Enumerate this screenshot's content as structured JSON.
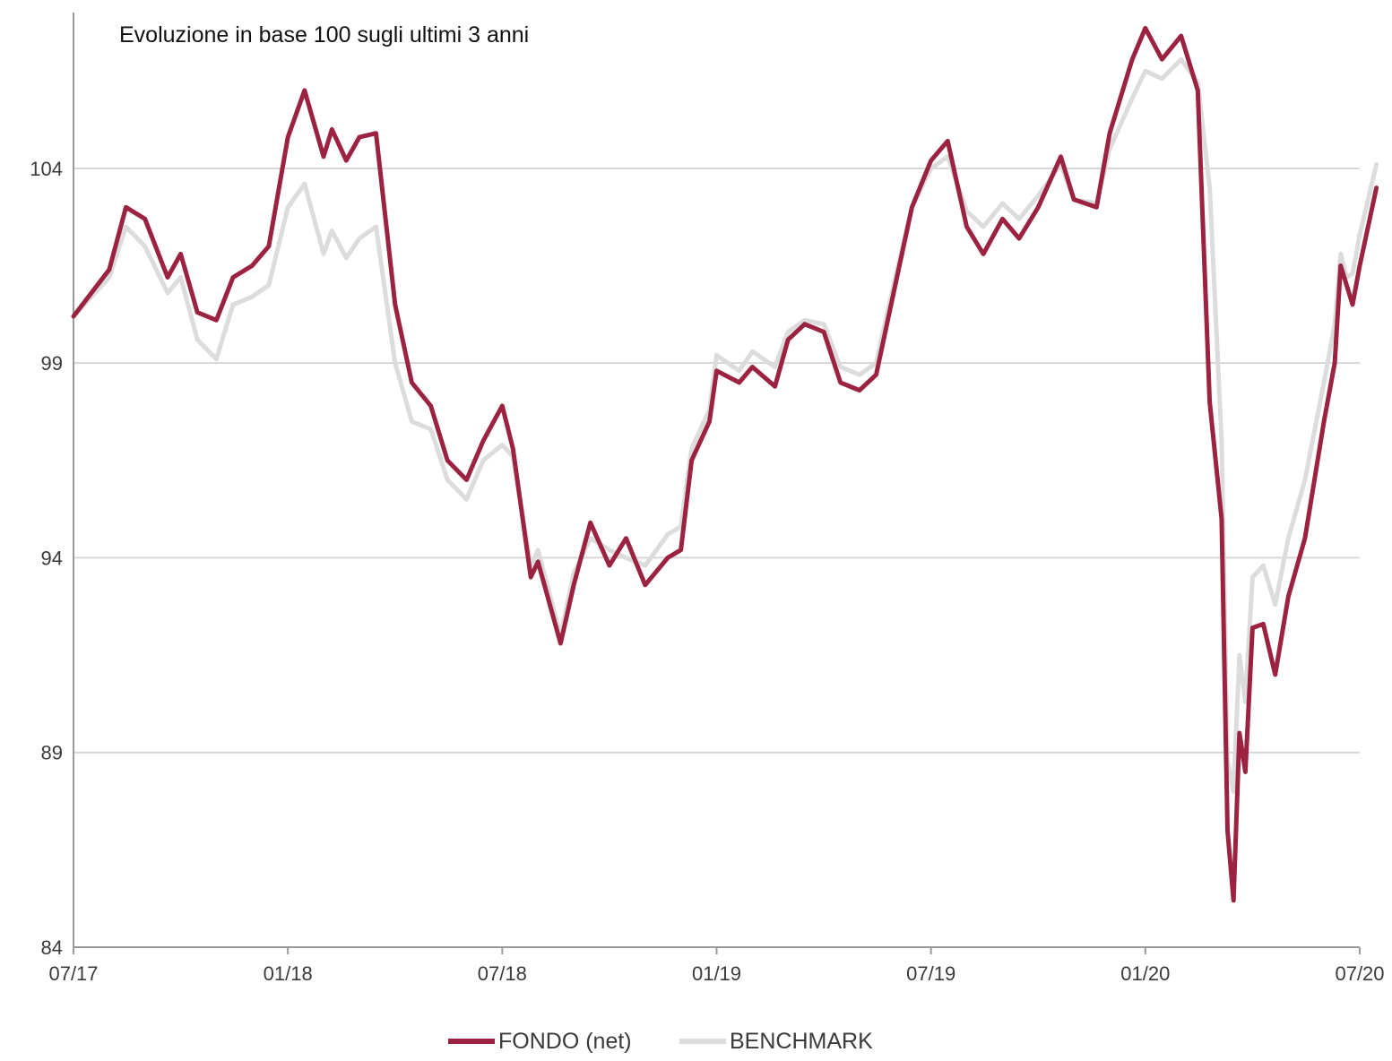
{
  "chart_data": {
    "type": "line",
    "title": "Evoluzione in base 100 sugli ultimi 3 anni",
    "xlabel": "",
    "ylabel": "",
    "x_ticks": [
      "07/17",
      "01/18",
      "07/18",
      "01/19",
      "07/19",
      "01/20",
      "07/20"
    ],
    "y_ticks": [
      84,
      89,
      94,
      99,
      104
    ],
    "ylim": [
      84,
      108
    ],
    "x_range": [
      "2017-07",
      "2020-07"
    ],
    "grid": "horizontal",
    "legend_position": "bottom-center",
    "series": [
      {
        "name": "FONDO (net)",
        "color": "#9b2241",
        "points": [
          [
            "2017-07",
            100.2
          ],
          [
            "2017-08",
            101.4
          ],
          [
            "2017-08-15",
            103.0
          ],
          [
            "2017-09",
            102.7
          ],
          [
            "2017-09-20",
            101.2
          ],
          [
            "2017-10",
            101.8
          ],
          [
            "2017-10-15",
            100.3
          ],
          [
            "2017-11",
            100.1
          ],
          [
            "2017-11-15",
            101.2
          ],
          [
            "2017-12",
            101.5
          ],
          [
            "2017-12-15",
            102.0
          ],
          [
            "2018-01",
            104.8
          ],
          [
            "2018-01-15",
            106.0
          ],
          [
            "2018-02",
            104.3
          ],
          [
            "2018-02-08",
            105.0
          ],
          [
            "2018-02-20",
            104.2
          ],
          [
            "2018-03",
            104.8
          ],
          [
            "2018-03-15",
            104.9
          ],
          [
            "2018-04",
            100.5
          ],
          [
            "2018-04-15",
            98.5
          ],
          [
            "2018-05",
            97.9
          ],
          [
            "2018-05-15",
            96.5
          ],
          [
            "2018-06",
            96.0
          ],
          [
            "2018-06-15",
            97.0
          ],
          [
            "2018-07",
            97.9
          ],
          [
            "2018-07-10",
            96.8
          ],
          [
            "2018-07-25",
            93.5
          ],
          [
            "2018-08",
            93.9
          ],
          [
            "2018-08-20",
            91.8
          ],
          [
            "2018-09",
            93.3
          ],
          [
            "2018-09-15",
            94.9
          ],
          [
            "2018-10",
            93.8
          ],
          [
            "2018-10-15",
            94.5
          ],
          [
            "2018-11",
            93.3
          ],
          [
            "2018-11-20",
            94.0
          ],
          [
            "2018-12",
            94.2
          ],
          [
            "2018-12-10",
            96.5
          ],
          [
            "2018-12-25",
            97.5
          ],
          [
            "2019-01",
            98.8
          ],
          [
            "2019-01-20",
            98.5
          ],
          [
            "2019-02",
            98.9
          ],
          [
            "2019-02-20",
            98.4
          ],
          [
            "2019-03",
            99.6
          ],
          [
            "2019-03-15",
            100.0
          ],
          [
            "2019-04",
            99.8
          ],
          [
            "2019-04-15",
            98.5
          ],
          [
            "2019-05",
            98.3
          ],
          [
            "2019-05-15",
            98.7
          ],
          [
            "2019-06",
            101.0
          ],
          [
            "2019-06-15",
            103.0
          ],
          [
            "2019-07",
            104.2
          ],
          [
            "2019-07-15",
            104.7
          ],
          [
            "2019-08",
            102.5
          ],
          [
            "2019-08-15",
            101.8
          ],
          [
            "2019-09",
            102.7
          ],
          [
            "2019-09-15",
            102.2
          ],
          [
            "2019-10",
            103.0
          ],
          [
            "2019-10-20",
            104.3
          ],
          [
            "2019-11",
            103.2
          ],
          [
            "2019-11-20",
            103.0
          ],
          [
            "2019-12",
            104.9
          ],
          [
            "2019-12-20",
            106.8
          ],
          [
            "2020-01",
            107.6
          ],
          [
            "2020-01-15",
            106.8
          ],
          [
            "2020-02",
            107.4
          ],
          [
            "2020-02-15",
            106.0
          ],
          [
            "2020-02-25",
            98.0
          ],
          [
            "2020-03-05",
            95.0
          ],
          [
            "2020-03-10",
            87.0
          ],
          [
            "2020-03-15",
            85.2
          ],
          [
            "2020-03-20",
            89.5
          ],
          [
            "2020-03-25",
            88.5
          ],
          [
            "2020-04",
            92.2
          ],
          [
            "2020-04-10",
            92.3
          ],
          [
            "2020-04-20",
            91.0
          ],
          [
            "2020-05",
            93.0
          ],
          [
            "2020-05-15",
            94.5
          ],
          [
            "2020-06",
            97.5
          ],
          [
            "2020-06-10",
            99.0
          ],
          [
            "2020-06-15",
            101.5
          ],
          [
            "2020-06-20",
            101.0
          ],
          [
            "2020-06-25",
            100.5
          ],
          [
            "2020-07",
            101.5
          ],
          [
            "2020-07-15",
            103.5
          ]
        ]
      },
      {
        "name": "BENCHMARK",
        "color": "#dcdcdc",
        "points": [
          [
            "2017-07",
            100.2
          ],
          [
            "2017-08",
            101.2
          ],
          [
            "2017-08-15",
            102.5
          ],
          [
            "2017-09",
            102.0
          ],
          [
            "2017-09-20",
            100.8
          ],
          [
            "2017-10",
            101.2
          ],
          [
            "2017-10-15",
            99.6
          ],
          [
            "2017-11",
            99.1
          ],
          [
            "2017-11-15",
            100.5
          ],
          [
            "2017-12",
            100.7
          ],
          [
            "2017-12-15",
            101.0
          ],
          [
            "2018-01",
            103.0
          ],
          [
            "2018-01-15",
            103.6
          ],
          [
            "2018-02",
            101.8
          ],
          [
            "2018-02-08",
            102.4
          ],
          [
            "2018-02-20",
            101.7
          ],
          [
            "2018-03",
            102.2
          ],
          [
            "2018-03-15",
            102.5
          ],
          [
            "2018-04",
            99.0
          ],
          [
            "2018-04-15",
            97.5
          ],
          [
            "2018-05",
            97.3
          ],
          [
            "2018-05-15",
            96.0
          ],
          [
            "2018-06",
            95.5
          ],
          [
            "2018-06-15",
            96.5
          ],
          [
            "2018-07",
            96.9
          ],
          [
            "2018-07-10",
            96.6
          ],
          [
            "2018-07-25",
            93.8
          ],
          [
            "2018-08",
            94.2
          ],
          [
            "2018-08-20",
            92.0
          ],
          [
            "2018-09",
            93.6
          ],
          [
            "2018-09-15",
            94.5
          ],
          [
            "2018-10",
            94.2
          ],
          [
            "2018-10-15",
            94.0
          ],
          [
            "2018-11",
            93.8
          ],
          [
            "2018-11-20",
            94.6
          ],
          [
            "2018-12",
            94.8
          ],
          [
            "2018-12-10",
            96.8
          ],
          [
            "2018-12-25",
            97.8
          ],
          [
            "2019-01",
            99.2
          ],
          [
            "2019-01-20",
            98.8
          ],
          [
            "2019-02",
            99.3
          ],
          [
            "2019-02-20",
            98.9
          ],
          [
            "2019-03",
            99.8
          ],
          [
            "2019-03-15",
            100.1
          ],
          [
            "2019-04",
            100.0
          ],
          [
            "2019-04-15",
            98.9
          ],
          [
            "2019-05",
            98.7
          ],
          [
            "2019-05-15",
            99.0
          ],
          [
            "2019-06",
            101.2
          ],
          [
            "2019-06-15",
            103.0
          ],
          [
            "2019-07",
            104.0
          ],
          [
            "2019-07-15",
            104.3
          ],
          [
            "2019-08",
            102.9
          ],
          [
            "2019-08-15",
            102.5
          ],
          [
            "2019-09",
            103.1
          ],
          [
            "2019-09-15",
            102.7
          ],
          [
            "2019-10",
            103.3
          ],
          [
            "2019-10-20",
            104.1
          ],
          [
            "2019-11",
            103.2
          ],
          [
            "2019-11-20",
            103.1
          ],
          [
            "2019-12",
            104.5
          ],
          [
            "2019-12-20",
            105.8
          ],
          [
            "2020-01",
            106.5
          ],
          [
            "2020-01-15",
            106.3
          ],
          [
            "2020-02",
            106.8
          ],
          [
            "2020-02-15",
            106.2
          ],
          [
            "2020-02-25",
            103.5
          ],
          [
            "2020-03-05",
            97.0
          ],
          [
            "2020-03-10",
            88.8
          ],
          [
            "2020-03-15",
            88.0
          ],
          [
            "2020-03-20",
            91.5
          ],
          [
            "2020-03-25",
            90.3
          ],
          [
            "2020-04",
            93.5
          ],
          [
            "2020-04-10",
            93.8
          ],
          [
            "2020-04-20",
            92.8
          ],
          [
            "2020-05",
            94.5
          ],
          [
            "2020-05-15",
            96.0
          ],
          [
            "2020-06",
            98.5
          ],
          [
            "2020-06-10",
            100.0
          ],
          [
            "2020-06-15",
            101.8
          ],
          [
            "2020-06-20",
            101.2
          ],
          [
            "2020-06-25",
            101.3
          ],
          [
            "2020-07",
            102.3
          ],
          [
            "2020-07-15",
            104.1
          ]
        ]
      }
    ]
  }
}
